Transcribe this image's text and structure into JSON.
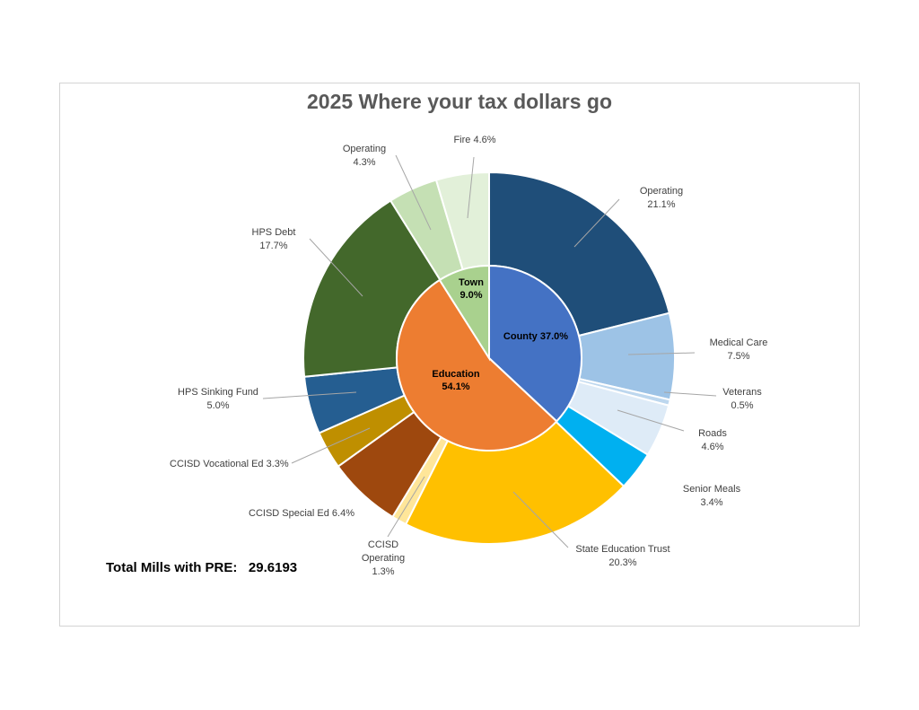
{
  "chart_data": {
    "type": "pie",
    "subtype": "doughnut-nested",
    "title": "2025 Where your tax dollars go",
    "inner_ring": [
      {
        "label": "County",
        "value_text": "37.0%",
        "value": 37.0,
        "color": "#4472c4",
        "label_color": "#000000"
      },
      {
        "label": "Education",
        "value_text": "54.1%",
        "value": 54.1,
        "color": "#ed7d31",
        "label_color": "#000000"
      },
      {
        "label": "Town",
        "value_text": "9.0%",
        "value": 9.0,
        "color": "#a9d18e",
        "label_color": "#000000"
      }
    ],
    "outer_ring": [
      {
        "label": "Operating",
        "value_text": "21.1%",
        "value": 21.1,
        "group": "County",
        "color": "#1f4e79"
      },
      {
        "label": "Medical Care",
        "value_text": "7.5%",
        "value": 7.5,
        "group": "County",
        "color": "#9dc3e6"
      },
      {
        "label": "Veterans",
        "value_text": "0.5%",
        "value": 0.5,
        "group": "County",
        "color": "#bdd7ee"
      },
      {
        "label": "Roads",
        "value_text": "4.6%",
        "value": 4.6,
        "group": "County",
        "color": "#deebf7"
      },
      {
        "label": "Senior Meals",
        "value_text": "3.4%",
        "value": 3.4,
        "group": "County",
        "color": "#00b0f0"
      },
      {
        "label": "State Education Trust",
        "value_text": "20.3%",
        "value": 20.3,
        "group": "Education",
        "color": "#ffc000"
      },
      {
        "label": "CCISD Operating",
        "value_text": "1.3%",
        "value": 1.3,
        "group": "Education",
        "color": "#ffe699"
      },
      {
        "label": "CCISD Special Ed",
        "value_text": "6.4%",
        "value": 6.4,
        "group": "Education",
        "color": "#9e480e"
      },
      {
        "label": "CCISD Vocational Ed",
        "value_text": "3.3%",
        "value": 3.3,
        "group": "Education",
        "color": "#bf8f00"
      },
      {
        "label": "HPS Sinking Fund",
        "value_text": "5.0%",
        "value": 5.0,
        "group": "Education",
        "color": "#255e91"
      },
      {
        "label": "HPS Debt",
        "value_text": "17.7%",
        "value": 17.7,
        "group": "Education",
        "color": "#43682b"
      },
      {
        "label": "Operating",
        "value_text": "4.3%",
        "value": 4.3,
        "group": "Town",
        "color": "#c5e0b4"
      },
      {
        "label": "Fire",
        "value_text": "4.6%",
        "value": 4.6,
        "group": "Town",
        "color": "#e2f0d9"
      }
    ],
    "outer_label_color": "#404040",
    "leader_line_color": "#a6a6a6"
  },
  "footer": {
    "total_mills_label": "Total Mills with PRE:",
    "total_mills_value": "29.6193"
  }
}
